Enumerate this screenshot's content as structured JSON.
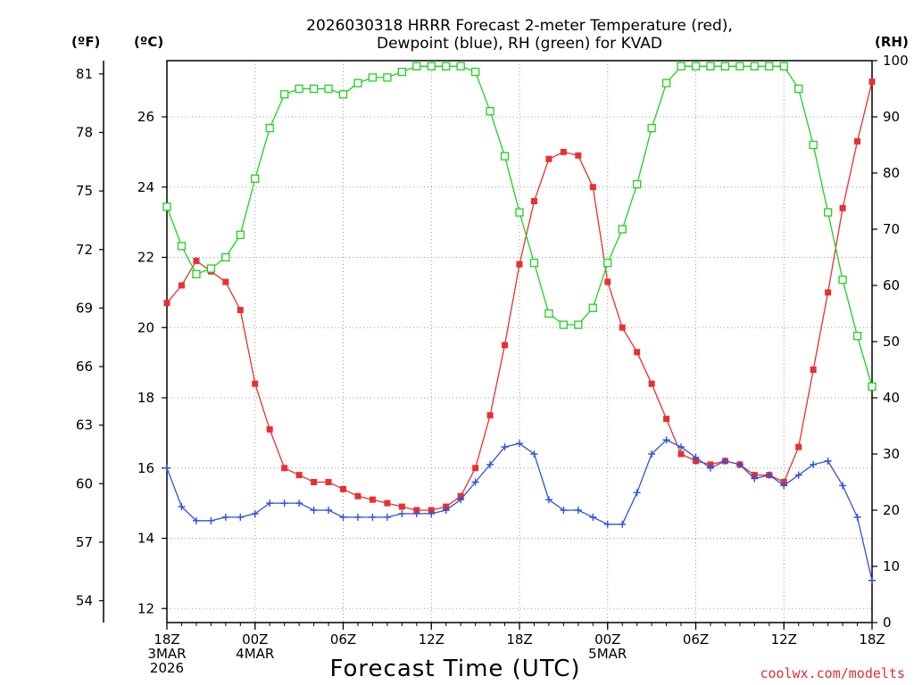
{
  "chart_data": {
    "type": "line",
    "title_line1": "2026030318 HRRR Forecast 2-meter Temperature (red),",
    "title_line2": "Dewpoint (blue), RH (green) for KVAD",
    "xlabel": "Forecast Time (UTC)",
    "credit": "coolwx.com/modelts",
    "units": {
      "fahrenheit": "(ºF)",
      "celsius": "(ºC)",
      "rh": "(RH)"
    },
    "ylim_c": [
      11.6,
      27.6
    ],
    "ylim_rh": [
      0,
      100
    ],
    "f_ticks": [
      "54",
      "57",
      "60",
      "63",
      "66",
      "69",
      "72",
      "75",
      "78",
      "81"
    ],
    "c_ticks": [
      "12",
      "14",
      "16",
      "18",
      "20",
      "22",
      "24",
      "26"
    ],
    "rh_ticks": [
      "0",
      "10",
      "20",
      "30",
      "40",
      "50",
      "60",
      "70",
      "80",
      "90",
      "100"
    ],
    "x_ticks": [
      {
        "hour": 0,
        "lines": [
          "18Z",
          "3MAR",
          "2026"
        ]
      },
      {
        "hour": 6,
        "lines": [
          "00Z",
          "4MAR"
        ]
      },
      {
        "hour": 12,
        "lines": [
          "06Z"
        ]
      },
      {
        "hour": 18,
        "lines": [
          "12Z"
        ]
      },
      {
        "hour": 24,
        "lines": [
          "18Z"
        ]
      },
      {
        "hour": 30,
        "lines": [
          "00Z",
          "5MAR"
        ]
      },
      {
        "hour": 36,
        "lines": [
          "06Z"
        ]
      },
      {
        "hour": 42,
        "lines": [
          "12Z"
        ]
      },
      {
        "hour": 48,
        "lines": [
          "18Z"
        ]
      }
    ],
    "x_hours": [
      0,
      1,
      2,
      3,
      4,
      5,
      6,
      7,
      8,
      9,
      10,
      11,
      12,
      13,
      14,
      15,
      16,
      17,
      18,
      19,
      20,
      21,
      22,
      23,
      24,
      25,
      26,
      27,
      28,
      29,
      30,
      31,
      32,
      33,
      34,
      35,
      36,
      37,
      38,
      39,
      40,
      41,
      42,
      43,
      44,
      45,
      46,
      47,
      48
    ],
    "series": [
      {
        "name": "Temperature",
        "color": "#e83030",
        "marker": "filled-square",
        "values": [
          20.7,
          21.2,
          21.9,
          21.6,
          21.3,
          20.5,
          18.4,
          17.1,
          16.0,
          15.8,
          15.6,
          15.6,
          15.4,
          15.2,
          15.1,
          15.0,
          14.9,
          14.8,
          14.8,
          14.9,
          15.2,
          16.0,
          17.5,
          19.5,
          21.8,
          23.6,
          24.8,
          25.0,
          24.9,
          24.0,
          21.3,
          20.0,
          19.3,
          18.4,
          17.4,
          16.4,
          16.2,
          16.1,
          16.2,
          16.1,
          15.8,
          15.8,
          15.6,
          16.6,
          18.8,
          21.0,
          23.4,
          25.3,
          27.0
        ]
      },
      {
        "name": "Dewpoint",
        "color": "#3050e0",
        "marker": "plus",
        "values": [
          16.0,
          14.9,
          14.5,
          14.5,
          14.6,
          14.6,
          14.7,
          15.0,
          15.0,
          15.0,
          14.8,
          14.8,
          14.6,
          14.6,
          14.6,
          14.6,
          14.7,
          14.7,
          14.7,
          14.8,
          15.1,
          15.6,
          16.1,
          16.6,
          16.7,
          16.4,
          15.1,
          14.8,
          14.8,
          14.6,
          14.4,
          14.4,
          15.3,
          16.4,
          16.8,
          16.6,
          16.3,
          16.0,
          16.2,
          16.1,
          15.7,
          15.8,
          15.5,
          15.8,
          16.1,
          16.2,
          15.5,
          14.6,
          12.8
        ]
      },
      {
        "name": "RH",
        "color": "#20d020",
        "marker": "open-square",
        "values": [
          74,
          67,
          62,
          63,
          65,
          69,
          79,
          88,
          94,
          95,
          95,
          95,
          94,
          96,
          97,
          97,
          98,
          99,
          99,
          99,
          99,
          98,
          91,
          83,
          73,
          64,
          55,
          53,
          53,
          56,
          64,
          70,
          78,
          88,
          96,
          99,
          99,
          99,
          99,
          99,
          99,
          99,
          99,
          95,
          85,
          73,
          61,
          51,
          42
        ]
      }
    ]
  }
}
